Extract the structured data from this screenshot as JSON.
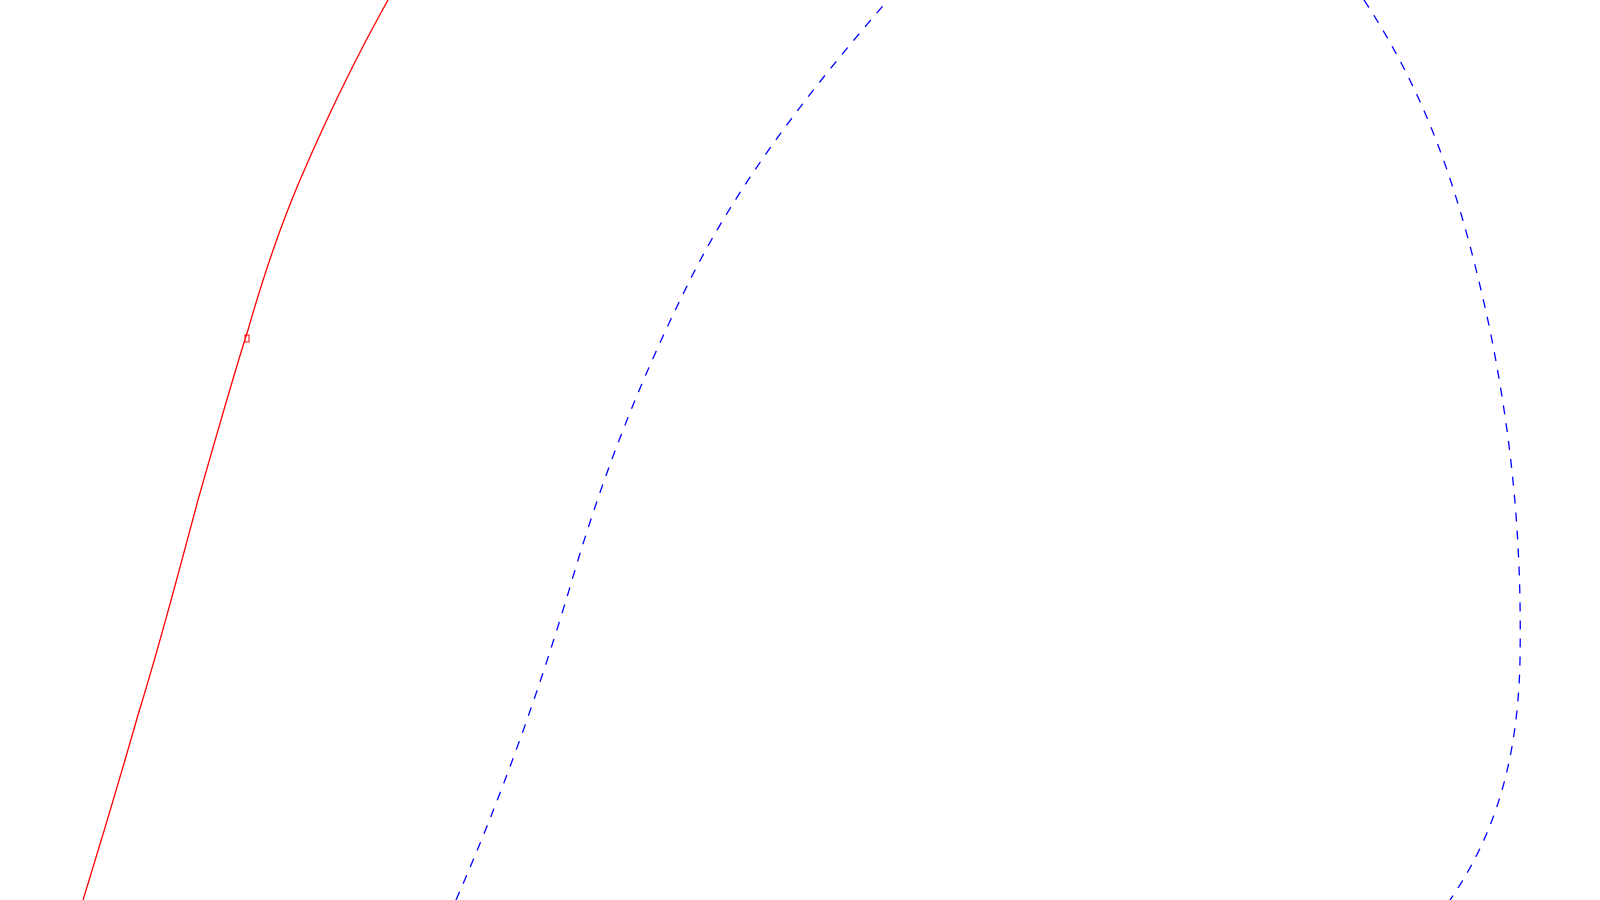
{
  "background": "#ffffff",
  "curves": [
    {
      "name": "red-solid-curve",
      "color": "#ff0000",
      "style": "solid"
    },
    {
      "name": "blue-dashed-curve",
      "color": "#0000ff",
      "style": "dashed"
    }
  ],
  "markers": [
    {
      "name": "red-curve-marker",
      "color": "#ff0000"
    }
  ]
}
